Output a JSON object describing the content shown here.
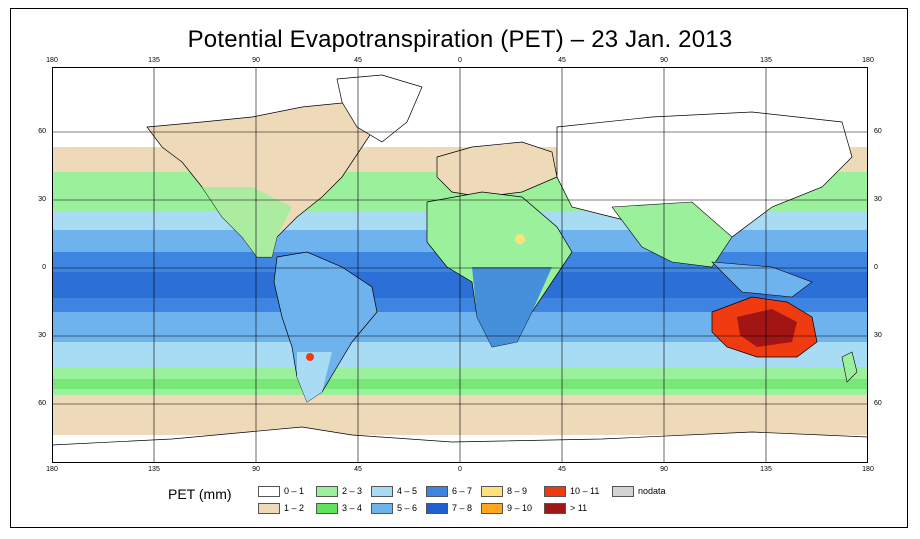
{
  "title": "Potential Evapotranspiration (PET) – 23 Jan. 2013",
  "legend": {
    "title": "PET (mm)",
    "items": [
      {
        "label": "0 – 1",
        "color": "#ffffff"
      },
      {
        "label": "1 – 2",
        "color": "#eed9b8"
      },
      {
        "label": "2 – 3",
        "color": "#9bf09b"
      },
      {
        "label": "3 – 4",
        "color": "#5fe35f"
      },
      {
        "label": "4 – 5",
        "color": "#a8dcf5"
      },
      {
        "label": "5 – 6",
        "color": "#6fb3ee"
      },
      {
        "label": "6 – 7",
        "color": "#3d85e0"
      },
      {
        "label": "7 – 8",
        "color": "#1f5fd0"
      },
      {
        "label": "8 – 9",
        "color": "#ffe07a"
      },
      {
        "label": "9 – 10",
        "color": "#ffa51f"
      },
      {
        "label": "10 – 11",
        "color": "#f03a10"
      },
      {
        "label": "> 11",
        "color": "#a11515"
      },
      {
        "label": "nodata",
        "color": "#d3d3d3"
      }
    ]
  },
  "axes": {
    "x_top": [
      "180",
      "135",
      "90",
      "45",
      "0",
      "45",
      "90",
      "135",
      "180"
    ],
    "x_bottom": [
      "180",
      "135",
      "90",
      "45",
      "0",
      "45",
      "90",
      "135",
      "180"
    ],
    "y_left": [
      "60",
      "30",
      "0",
      "30",
      "60"
    ],
    "y_right": [
      "60",
      "30",
      "0",
      "30",
      "60"
    ]
  }
}
